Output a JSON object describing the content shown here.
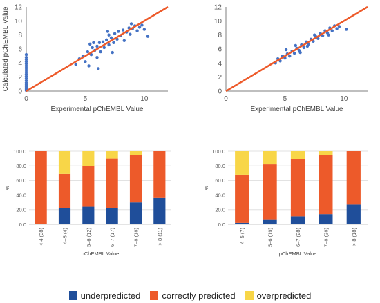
{
  "chart_data": [
    {
      "type": "scatter",
      "xlabel": "Experimental pChEMBL Value",
      "ylabel": "Calculated pChEMBL Value",
      "xlim": [
        0,
        12
      ],
      "ylim": [
        0,
        12
      ],
      "xticks": [
        "0",
        "5",
        "10"
      ],
      "yticks": [
        "0",
        "2",
        "4",
        "6",
        "8",
        "10",
        "12"
      ],
      "reference_line": {
        "x": [
          0,
          12
        ],
        "y": [
          0,
          12
        ],
        "color": "#ED5A2A"
      },
      "series": [
        {
          "color": "#4472C4",
          "points": [
            [
              0.0,
              0.1
            ],
            [
              0.0,
              0.3
            ],
            [
              0.0,
              0.6
            ],
            [
              0.0,
              0.9
            ],
            [
              0.0,
              1.2
            ],
            [
              0.0,
              1.5
            ],
            [
              0.0,
              1.8
            ],
            [
              0.0,
              2.1
            ],
            [
              0.0,
              2.4
            ],
            [
              0.0,
              2.7
            ],
            [
              0.0,
              3.0
            ],
            [
              0.0,
              3.3
            ],
            [
              0.0,
              3.6
            ],
            [
              0.0,
              3.9
            ],
            [
              0.0,
              4.2
            ],
            [
              0.0,
              4.5
            ],
            [
              0.0,
              4.8
            ],
            [
              0.0,
              5.2
            ],
            [
              4.2,
              3.8
            ],
            [
              4.5,
              4.6
            ],
            [
              4.8,
              5.0
            ],
            [
              5.0,
              4.2
            ],
            [
              5.2,
              5.6
            ],
            [
              5.3,
              3.6
            ],
            [
              5.5,
              5.2
            ],
            [
              5.6,
              6.2
            ],
            [
              5.8,
              5.8
            ],
            [
              6.0,
              6.4
            ],
            [
              6.0,
              4.8
            ],
            [
              6.2,
              6.9
            ],
            [
              6.3,
              5.6
            ],
            [
              6.5,
              7.0
            ],
            [
              6.6,
              6.2
            ],
            [
              6.8,
              7.3
            ],
            [
              7.0,
              6.6
            ],
            [
              7.0,
              8.0
            ],
            [
              7.2,
              7.6
            ],
            [
              7.4,
              6.9
            ],
            [
              7.5,
              8.2
            ],
            [
              7.7,
              7.4
            ],
            [
              7.8,
              8.5
            ],
            [
              8.0,
              7.9
            ],
            [
              8.2,
              8.7
            ],
            [
              8.3,
              7.2
            ],
            [
              8.5,
              8.4
            ],
            [
              8.7,
              9.0
            ],
            [
              8.8,
              8.1
            ],
            [
              9.0,
              8.9
            ],
            [
              9.2,
              9.3
            ],
            [
              9.4,
              8.6
            ],
            [
              9.6,
              9.1
            ],
            [
              9.8,
              9.4
            ],
            [
              10.0,
              8.8
            ],
            [
              10.3,
              7.8
            ],
            [
              6.1,
              3.2
            ],
            [
              7.3,
              5.5
            ],
            [
              5.7,
              6.9
            ],
            [
              8.9,
              9.6
            ],
            [
              6.9,
              8.5
            ],
            [
              5.4,
              6.7
            ]
          ]
        }
      ]
    },
    {
      "type": "scatter",
      "xlabel": "Experimental pChEMBL Value",
      "ylabel": "",
      "xlim": [
        0,
        12
      ],
      "ylim": [
        0,
        12
      ],
      "xticks": [
        "0",
        "5",
        "10"
      ],
      "yticks": [
        "0",
        "2",
        "4",
        "6",
        "8",
        "10",
        "12"
      ],
      "reference_line": {
        "x": [
          0,
          12
        ],
        "y": [
          0,
          12
        ],
        "color": "#ED5A2A"
      },
      "series": [
        {
          "color": "#4472C4",
          "points": [
            [
              4.2,
              4.0
            ],
            [
              4.4,
              4.6
            ],
            [
              4.6,
              4.3
            ],
            [
              4.8,
              5.0
            ],
            [
              5.0,
              4.7
            ],
            [
              5.2,
              5.3
            ],
            [
              5.4,
              5.0
            ],
            [
              5.6,
              5.7
            ],
            [
              5.8,
              5.4
            ],
            [
              6.0,
              6.1
            ],
            [
              6.2,
              5.8
            ],
            [
              6.4,
              6.6
            ],
            [
              6.6,
              6.2
            ],
            [
              6.8,
              7.0
            ],
            [
              7.0,
              6.7
            ],
            [
              7.2,
              7.4
            ],
            [
              7.4,
              7.1
            ],
            [
              7.6,
              7.8
            ],
            [
              7.8,
              7.5
            ],
            [
              8.0,
              8.2
            ],
            [
              8.2,
              7.9
            ],
            [
              8.4,
              8.6
            ],
            [
              8.6,
              8.3
            ],
            [
              8.8,
              9.0
            ],
            [
              9.0,
              8.6
            ],
            [
              9.2,
              9.3
            ],
            [
              9.4,
              8.9
            ],
            [
              9.6,
              9.2
            ],
            [
              10.2,
              8.8
            ],
            [
              5.1,
              5.9
            ],
            [
              6.3,
              5.5
            ],
            [
              7.5,
              8.0
            ],
            [
              8.7,
              8.0
            ],
            [
              5.9,
              6.5
            ],
            [
              6.9,
              6.4
            ]
          ]
        }
      ]
    },
    {
      "type": "bar",
      "stacked": true,
      "xlabel": "pChEMBL Value",
      "ylabel": "%",
      "ylim": [
        0,
        100
      ],
      "yticks": [
        "0.0",
        "20.0",
        "40.0",
        "60.0",
        "80.0",
        "100.0"
      ],
      "categories": [
        "< 4 (38)",
        "4–5 (4)",
        "5–6 (12)",
        "6–7 (17)",
        "7–8 (18)",
        "> 8 (11)"
      ],
      "series": [
        {
          "name": "underpredicted",
          "color": "#1F4E9A",
          "values": [
            0,
            22,
            24,
            22,
            30,
            36
          ]
        },
        {
          "name": "correctly predicted",
          "color": "#ED5A2A",
          "values": [
            100,
            47,
            56,
            68,
            65,
            64
          ]
        },
        {
          "name": "overpredicted",
          "color": "#F8D648",
          "values": [
            0,
            31,
            20,
            10,
            5,
            0
          ]
        }
      ]
    },
    {
      "type": "bar",
      "stacked": true,
      "xlabel": "pChEMBL Value",
      "ylabel": "%",
      "ylim": [
        0,
        100
      ],
      "yticks": [
        "0.0",
        "20.0",
        "40.0",
        "60.0",
        "80.0",
        "100.0"
      ],
      "categories": [
        "4–5 (7)",
        "5–6 (19)",
        "6–7 (28)",
        "7–8 (28)",
        "> 8 (18)"
      ],
      "series": [
        {
          "name": "underpredicted",
          "color": "#1F4E9A",
          "values": [
            2,
            6,
            11,
            14,
            27
          ]
        },
        {
          "name": "correctly predicted",
          "color": "#ED5A2A",
          "values": [
            66,
            76,
            78,
            81,
            73
          ]
        },
        {
          "name": "overpredicted",
          "color": "#F8D648",
          "values": [
            32,
            18,
            11,
            5,
            0
          ]
        }
      ]
    }
  ],
  "legend": [
    {
      "label": "underpredicted",
      "color": "#1F4E9A"
    },
    {
      "label": "correctly predicted",
      "color": "#ED5A2A"
    },
    {
      "label": "overpredicted",
      "color": "#F8D648"
    }
  ]
}
